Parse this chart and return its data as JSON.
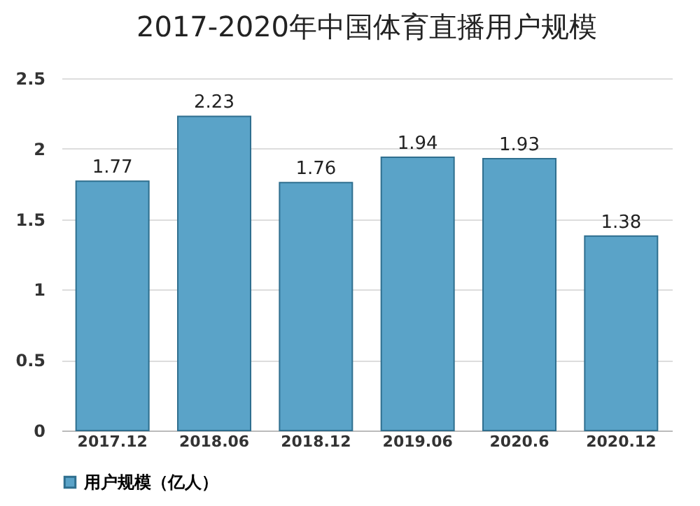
{
  "chart_data": {
    "type": "bar",
    "title": "2017-2020年中国体育直播用户规模",
    "categories": [
      "2017.12",
      "2018.06",
      "2018.12",
      "2019.06",
      "2020.6",
      "2020.12"
    ],
    "series": [
      {
        "name": "用户规模（亿人）",
        "color": "#5aa3c8",
        "values": [
          1.77,
          2.23,
          1.76,
          1.94,
          1.93,
          1.38
        ]
      }
    ],
    "ylim": [
      0,
      2.5
    ],
    "yticks": [
      0,
      0.5,
      1,
      1.5,
      2,
      2.5
    ],
    "grid": "y",
    "data_labels": true,
    "legend": "bottom"
  }
}
